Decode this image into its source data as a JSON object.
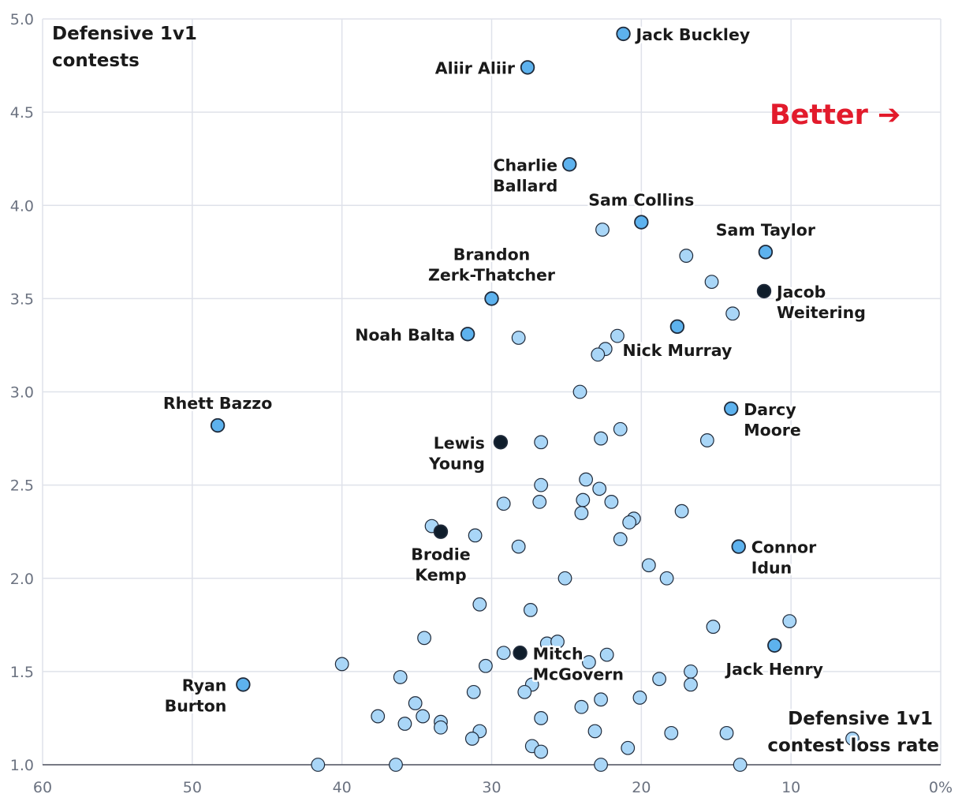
{
  "colors": {
    "point": "#a9d6f7",
    "highlight": "#5db2ee",
    "dark": "#0f1d2b",
    "better": "#e21b2c"
  },
  "chart_data": {
    "type": "scatter",
    "xlabel": "Defensive 1v1 contest loss rate",
    "ylabel": "Defensive 1v1 contests",
    "xlim": [
      60,
      0
    ],
    "ylim": [
      1.0,
      5.0
    ],
    "x_ticks": [
      "60",
      "50",
      "40",
      "30",
      "20",
      "10",
      "0%"
    ],
    "y_ticks": [
      "1.0",
      "1.5",
      "2.0",
      "2.5",
      "3.0",
      "3.5",
      "4.0",
      "4.5",
      "5.0"
    ],
    "annotation": "Better ➔",
    "labeled_players": [
      {
        "name": "Jack Buckley",
        "lines": [
          "Jack Buckley"
        ],
        "x": 21.2,
        "y": 4.92,
        "style": "highlight"
      },
      {
        "name": "Aliir Aliir",
        "lines": [
          "Aliir Aliir"
        ],
        "x": 27.6,
        "y": 4.74,
        "style": "highlight"
      },
      {
        "name": "Charlie Ballard",
        "lines": [
          "Charlie",
          "Ballard"
        ],
        "x": 24.8,
        "y": 4.22,
        "style": "highlight"
      },
      {
        "name": "Sam Collins",
        "lines": [
          "Sam Collins"
        ],
        "x": 20.0,
        "y": 3.91,
        "style": "highlight"
      },
      {
        "name": "Sam Taylor",
        "lines": [
          "Sam Taylor"
        ],
        "x": 11.7,
        "y": 3.75,
        "style": "highlight"
      },
      {
        "name": "Brandon Zerk-Thatcher",
        "lines": [
          "Brandon",
          "Zerk-Thatcher"
        ],
        "x": 30.0,
        "y": 3.5,
        "style": "highlight"
      },
      {
        "name": "Jacob Weitering",
        "lines": [
          "Jacob",
          "Weitering"
        ],
        "x": 11.8,
        "y": 3.54,
        "style": "dark"
      },
      {
        "name": "Noah Balta",
        "lines": [
          "Noah Balta"
        ],
        "x": 31.6,
        "y": 3.31,
        "style": "highlight"
      },
      {
        "name": "Nick Murray",
        "lines": [
          "Nick Murray"
        ],
        "x": 17.6,
        "y": 3.35,
        "style": "highlight"
      },
      {
        "name": "Rhett Bazzo",
        "lines": [
          "Rhett Bazzo"
        ],
        "x": 48.3,
        "y": 2.82,
        "style": "highlight"
      },
      {
        "name": "Darcy Moore",
        "lines": [
          "Darcy",
          "Moore"
        ],
        "x": 14.0,
        "y": 2.91,
        "style": "highlight"
      },
      {
        "name": "Lewis Young",
        "lines": [
          "Lewis",
          "Young"
        ],
        "x": 29.4,
        "y": 2.73,
        "style": "dark"
      },
      {
        "name": "Brodie Kemp",
        "lines": [
          "Brodie",
          "Kemp"
        ],
        "x": 33.4,
        "y": 2.25,
        "style": "dark"
      },
      {
        "name": "Connor Idun",
        "lines": [
          "Connor",
          "Idun"
        ],
        "x": 13.5,
        "y": 2.17,
        "style": "highlight"
      },
      {
        "name": "Mitch McGovern",
        "lines": [
          "Mitch",
          "McGovern"
        ],
        "x": 28.1,
        "y": 1.6,
        "style": "dark"
      },
      {
        "name": "Jack Henry",
        "lines": [
          "Jack Henry"
        ],
        "x": 11.1,
        "y": 1.64,
        "style": "highlight"
      },
      {
        "name": "Ryan Burton",
        "lines": [
          "Ryan",
          "Burton"
        ],
        "x": 46.6,
        "y": 1.43,
        "style": "highlight"
      }
    ],
    "other_points": [
      [
        22.6,
        3.87
      ],
      [
        17.0,
        3.73
      ],
      [
        15.3,
        3.59
      ],
      [
        13.9,
        3.42
      ],
      [
        28.2,
        3.29
      ],
      [
        21.6,
        3.3
      ],
      [
        22.4,
        3.23
      ],
      [
        22.9,
        3.2
      ],
      [
        24.1,
        3.0
      ],
      [
        21.4,
        2.8
      ],
      [
        22.7,
        2.75
      ],
      [
        15.6,
        2.74
      ],
      [
        26.7,
        2.73
      ],
      [
        23.7,
        2.53
      ],
      [
        26.7,
        2.5
      ],
      [
        22.8,
        2.48
      ],
      [
        29.2,
        2.4
      ],
      [
        26.8,
        2.41
      ],
      [
        23.9,
        2.42
      ],
      [
        22.0,
        2.41
      ],
      [
        24.0,
        2.35
      ],
      [
        17.3,
        2.36
      ],
      [
        20.5,
        2.32
      ],
      [
        20.8,
        2.3
      ],
      [
        34.0,
        2.28
      ],
      [
        31.1,
        2.23
      ],
      [
        21.4,
        2.21
      ],
      [
        28.2,
        2.17
      ],
      [
        19.5,
        2.07
      ],
      [
        25.1,
        2.0
      ],
      [
        18.3,
        2.0
      ],
      [
        30.8,
        1.86
      ],
      [
        27.4,
        1.83
      ],
      [
        10.1,
        1.77
      ],
      [
        15.2,
        1.74
      ],
      [
        34.5,
        1.68
      ],
      [
        26.3,
        1.65
      ],
      [
        25.6,
        1.66
      ],
      [
        29.2,
        1.6
      ],
      [
        22.3,
        1.59
      ],
      [
        23.5,
        1.55
      ],
      [
        40.0,
        1.54
      ],
      [
        30.4,
        1.53
      ],
      [
        16.7,
        1.5
      ],
      [
        36.1,
        1.47
      ],
      [
        18.8,
        1.46
      ],
      [
        27.3,
        1.43
      ],
      [
        16.7,
        1.43
      ],
      [
        31.2,
        1.39
      ],
      [
        27.8,
        1.39
      ],
      [
        20.1,
        1.36
      ],
      [
        22.7,
        1.35
      ],
      [
        35.1,
        1.33
      ],
      [
        24.0,
        1.31
      ],
      [
        37.6,
        1.26
      ],
      [
        34.6,
        1.26
      ],
      [
        26.7,
        1.25
      ],
      [
        33.4,
        1.23
      ],
      [
        35.8,
        1.22
      ],
      [
        33.4,
        1.2
      ],
      [
        30.8,
        1.18
      ],
      [
        23.1,
        1.18
      ],
      [
        18.0,
        1.17
      ],
      [
        14.3,
        1.17
      ],
      [
        31.3,
        1.14
      ],
      [
        5.9,
        1.14
      ],
      [
        27.3,
        1.1
      ],
      [
        20.9,
        1.09
      ],
      [
        26.7,
        1.07
      ],
      [
        41.6,
        1.0
      ],
      [
        36.4,
        1.0
      ],
      [
        22.7,
        1.0
      ],
      [
        13.4,
        1.0
      ]
    ]
  }
}
